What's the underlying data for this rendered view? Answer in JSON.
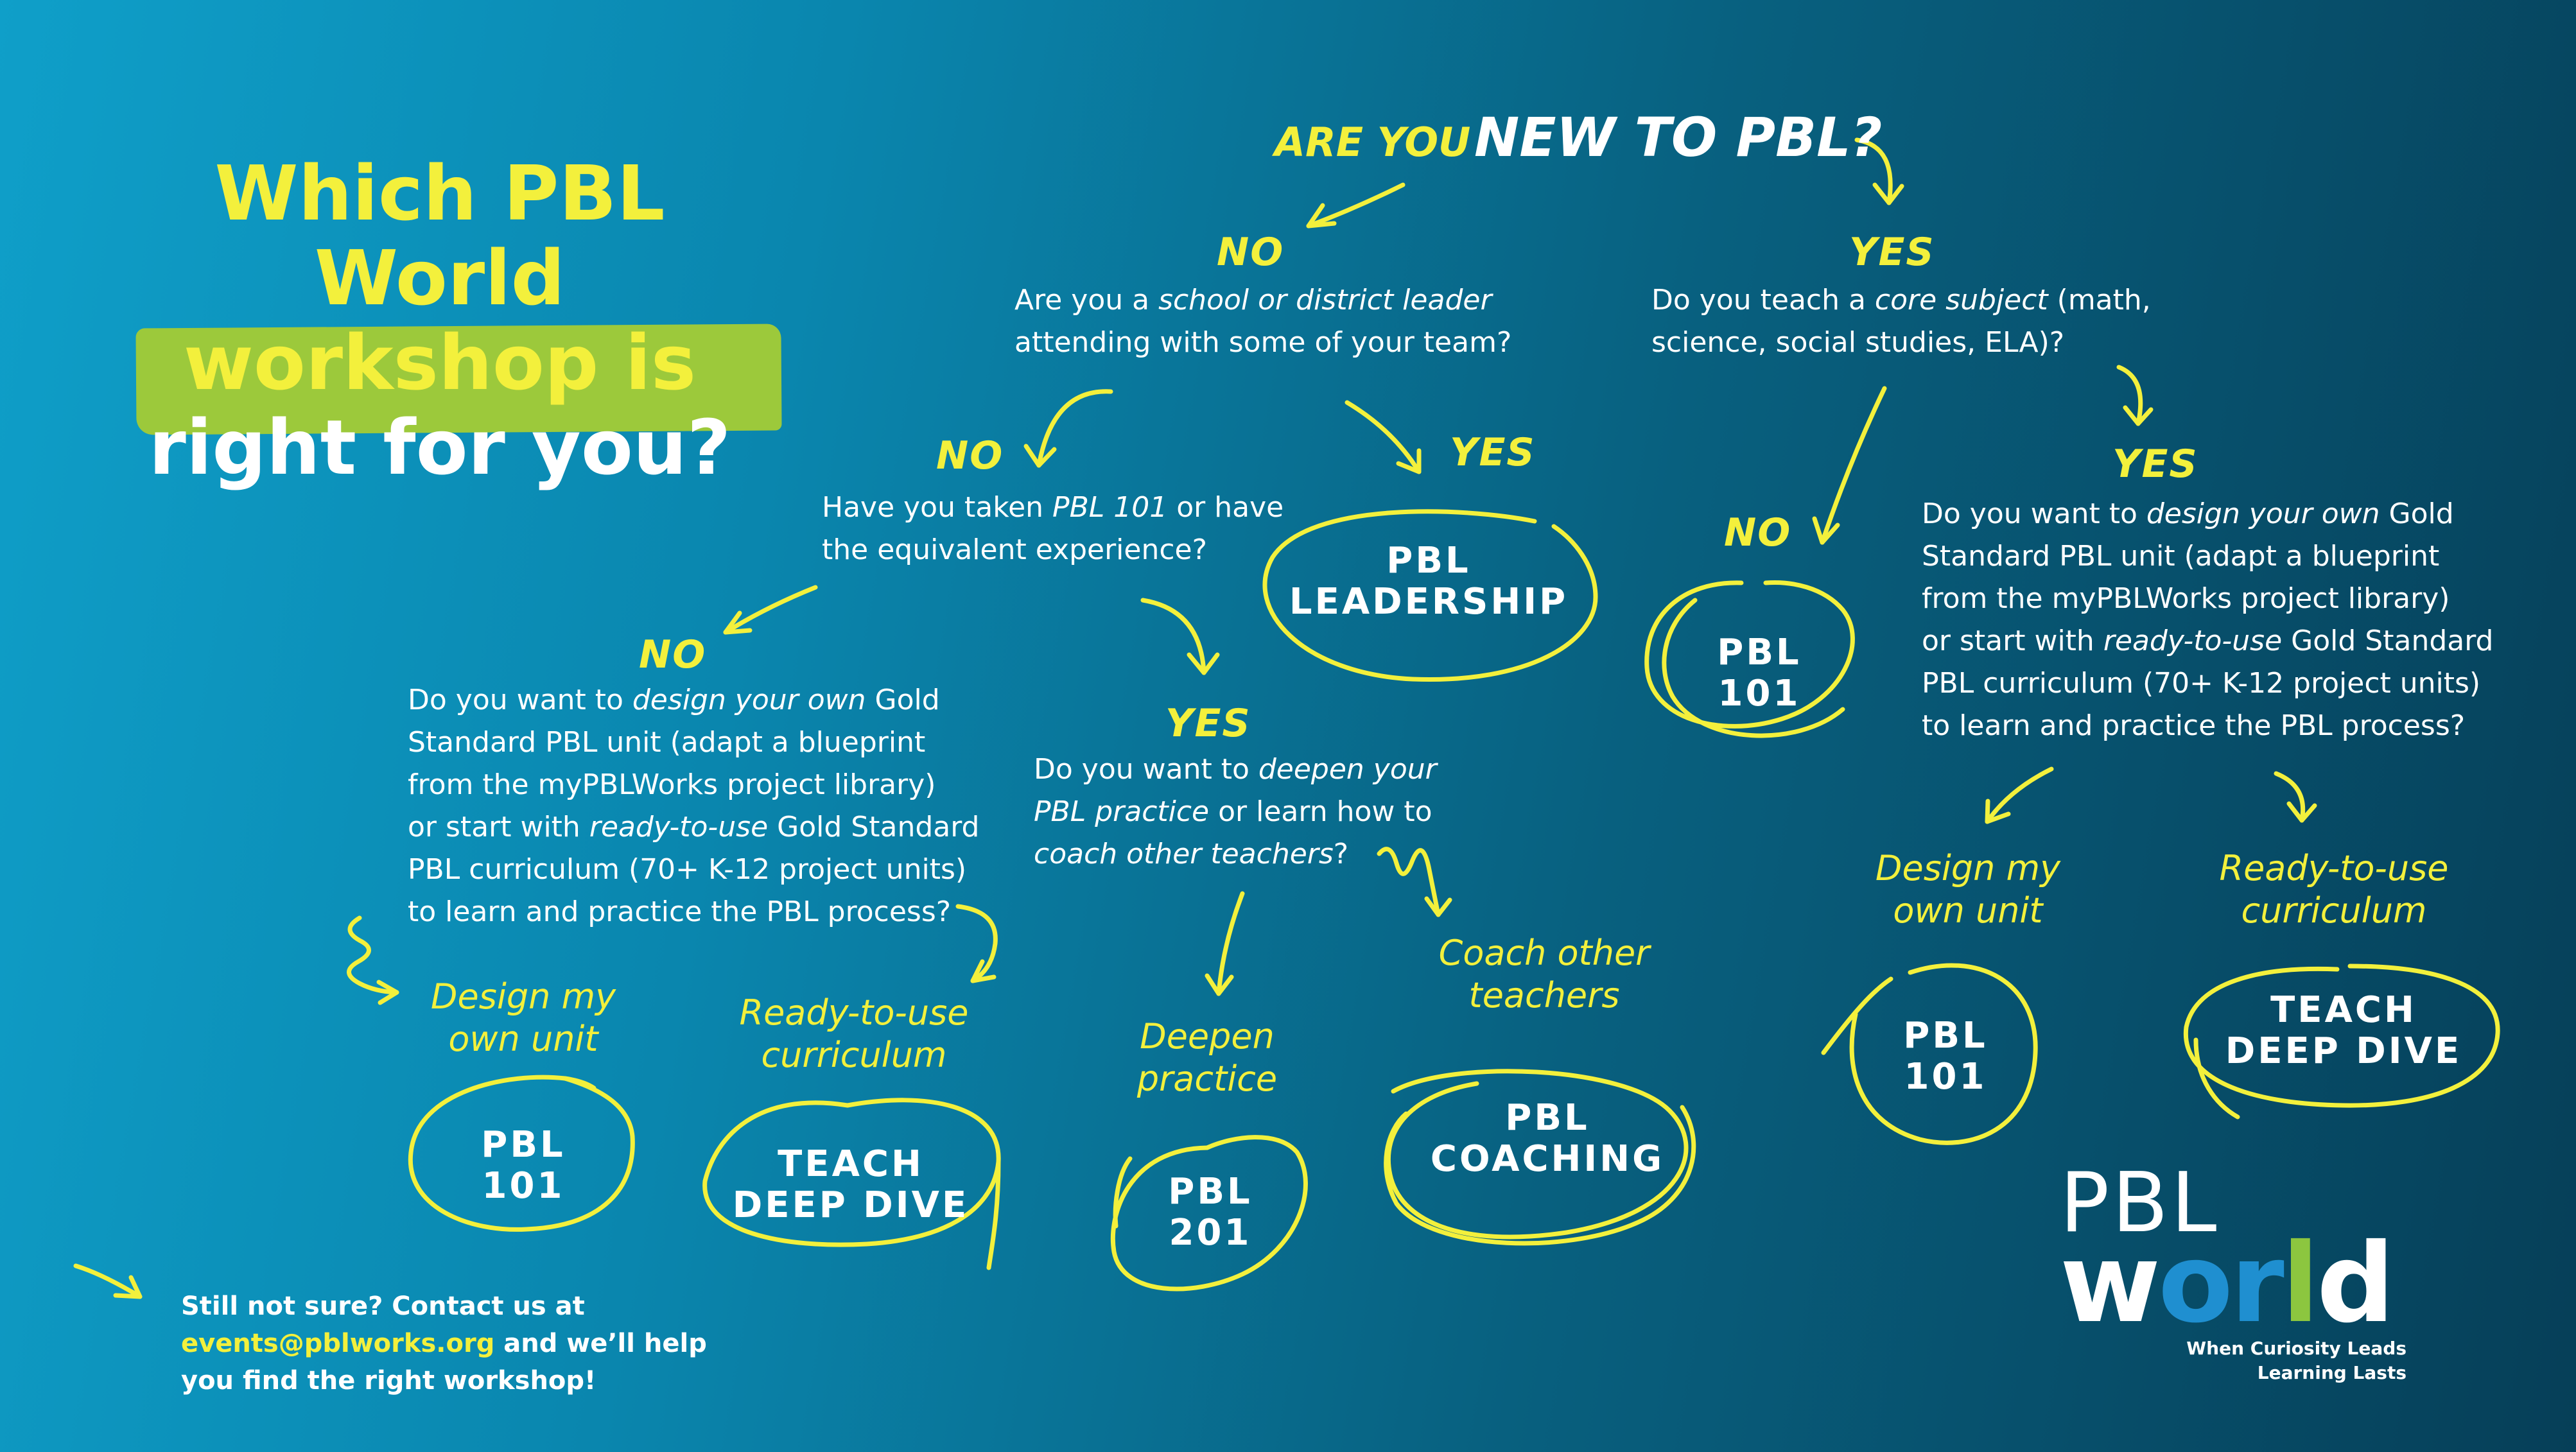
{
  "title": {
    "line1": "Which PBL World",
    "line2": "workshop is",
    "line3": "right for you?"
  },
  "start": {
    "prefix": "ARE YOU",
    "main": "NEW TO PBL?"
  },
  "no_branch": {
    "label": "NO",
    "question": [
      "Are you a ",
      "school or district leader",
      "attending with some of your team?"
    ],
    "yes_label": "YES",
    "leadership": [
      "PBL",
      "LEADERSHIP"
    ],
    "no_label": "NO",
    "pbl101_question": [
      "Have you taken ",
      "PBL 101",
      " or have",
      "the equivalent experience?"
    ],
    "not_taken": {
      "label": "NO",
      "question": [
        "Do you want to ",
        "design your own",
        " Gold",
        "Standard PBL unit (adapt a  blueprint",
        "from the myPBLWorks project library)",
        "or start with ",
        "ready-to-use",
        " Gold Standard",
        "PBL curriculum (70+ K-12 project units)",
        "to learn and practice the PBL process?"
      ],
      "design_option": [
        "Design my",
        "own unit"
      ],
      "design_result": [
        "PBL",
        "101"
      ],
      "ready_option": [
        "Ready-to-use",
        "curriculum"
      ],
      "ready_result": [
        "TEACH",
        "DEEP DIVE"
      ]
    },
    "taken": {
      "label": "YES",
      "question": [
        "Do you want to ",
        "deepen your",
        "PBL practice",
        " or learn how to",
        "coach other teachers",
        "?"
      ],
      "deepen_option": [
        "Deepen",
        "practice"
      ],
      "deepen_result": [
        "PBL",
        "201"
      ],
      "coach_option": [
        "Coach other",
        "teachers"
      ],
      "coach_result": [
        "PBL",
        "COACHING"
      ]
    }
  },
  "yes_branch": {
    "label": "YES",
    "question": [
      "Do you teach a ",
      "core subject",
      " (math,",
      "science, social studies, ELA)?"
    ],
    "no_label": "NO",
    "no_result": [
      "PBL",
      "101"
    ],
    "yes_label": "YES",
    "yes_question": [
      "Do you want to ",
      "design your own",
      " Gold",
      "Standard PBL unit (adapt a  blueprint",
      "from the myPBLWorks project library)",
      "or start with ",
      "ready-to-use",
      " Gold Standard",
      "PBL curriculum (70+ K-12 project units)",
      "to learn and practice the PBL process?"
    ],
    "design_option": [
      "Design my",
      "own unit"
    ],
    "design_result": [
      "PBL",
      "101"
    ],
    "ready_option": [
      "Ready-to-use",
      "curriculum"
    ],
    "ready_result": [
      "TEACH",
      "DEEP DIVE"
    ]
  },
  "footer": {
    "line1": "Still not sure? Contact us at",
    "email": "events@pblworks.org",
    "line2_rest": " and we’ll help",
    "line3": "you find the right workshop!"
  },
  "logo": {
    "top": "PBL",
    "bottom": [
      "w",
      "o",
      "r",
      "l",
      "d"
    ],
    "tagline1": "When Curiosity Leads",
    "tagline2": "Learning Lasts"
  },
  "colors": {
    "accent": "#f3f03c",
    "title_bar": "#9cc93b",
    "background_start": "#0f9fc9",
    "background_end": "#063f58",
    "logo_blue": "#1f8fd0",
    "logo_green": "#8cc63f"
  }
}
